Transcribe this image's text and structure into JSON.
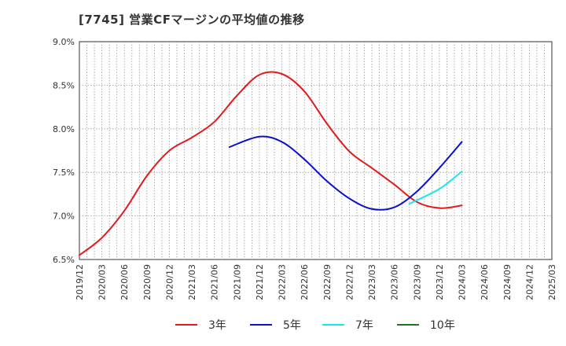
{
  "chart_data": {
    "type": "line",
    "title": "[7745]  営業CFマージンの平均値の推移",
    "xlabel": "",
    "ylabel": "",
    "ylim": [
      6.5,
      9.0
    ],
    "y_ticks": [
      "6.5%",
      "7.0%",
      "7.5%",
      "8.0%",
      "8.5%",
      "9.0%"
    ],
    "x_ticks": [
      "2019/12",
      "2020/03",
      "2020/06",
      "2020/09",
      "2020/12",
      "2021/03",
      "2021/06",
      "2021/09",
      "2021/12",
      "2022/03",
      "2022/06",
      "2022/09",
      "2022/12",
      "2023/03",
      "2023/06",
      "2023/09",
      "2023/12",
      "2024/03",
      "2024/06",
      "2024/09",
      "2024/12",
      "2025/03"
    ],
    "grid": true,
    "legend_position": "bottom",
    "series": [
      {
        "name": "3年",
        "color": "#e31a1c",
        "points": [
          [
            "2019/12",
            6.55
          ],
          [
            "2020/03",
            6.75
          ],
          [
            "2020/06",
            7.06
          ],
          [
            "2020/09",
            7.46
          ],
          [
            "2020/12",
            7.75
          ],
          [
            "2021/03",
            7.9
          ],
          [
            "2021/06",
            8.08
          ],
          [
            "2021/09",
            8.38
          ],
          [
            "2021/12",
            8.62
          ],
          [
            "2022/03",
            8.63
          ],
          [
            "2022/06",
            8.43
          ],
          [
            "2022/09",
            8.06
          ],
          [
            "2022/12",
            7.74
          ],
          [
            "2023/03",
            7.55
          ],
          [
            "2023/06",
            7.36
          ],
          [
            "2023/09",
            7.16
          ],
          [
            "2023/12",
            7.09
          ],
          [
            "2024/03",
            7.12
          ]
        ]
      },
      {
        "name": "5年",
        "color": "#0a10cc",
        "points": [
          [
            "2021/08",
            7.79
          ],
          [
            "2021/12",
            7.91
          ],
          [
            "2022/03",
            7.85
          ],
          [
            "2022/06",
            7.65
          ],
          [
            "2022/09",
            7.4
          ],
          [
            "2022/12",
            7.2
          ],
          [
            "2023/03",
            7.08
          ],
          [
            "2023/06",
            7.1
          ],
          [
            "2023/09",
            7.28
          ],
          [
            "2023/12",
            7.55
          ],
          [
            "2024/03",
            7.85
          ]
        ]
      },
      {
        "name": "7年",
        "color": "#19e6ef",
        "points": [
          [
            "2023/08",
            7.14
          ],
          [
            "2023/12",
            7.31
          ],
          [
            "2024/03",
            7.51
          ]
        ]
      },
      {
        "name": "10年",
        "color": "#1a7a1a",
        "points": []
      }
    ]
  }
}
